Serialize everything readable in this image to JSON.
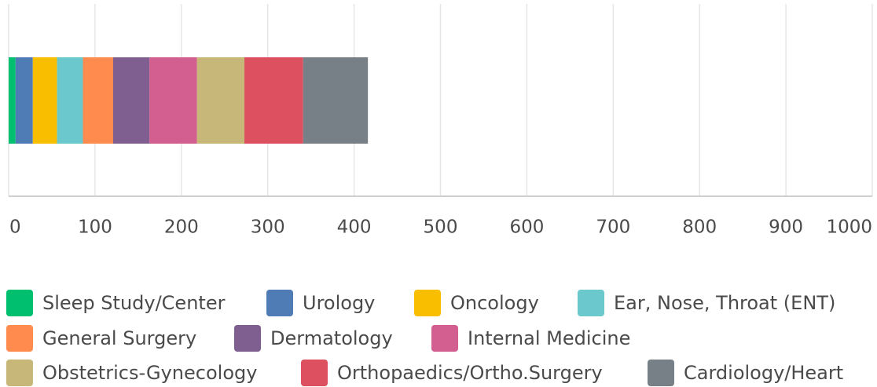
{
  "chart_data": {
    "type": "stacked_bar_horizontal",
    "series": [
      {
        "name": "Sleep Study/Center",
        "color": "#00bf6f",
        "values": [
          8
        ]
      },
      {
        "name": "Urology",
        "color": "#507cb6",
        "values": [
          20
        ]
      },
      {
        "name": "Oncology",
        "color": "#f9be00",
        "values": [
          28
        ]
      },
      {
        "name": "Ear, Nose, Throat (ENT)",
        "color": "#6bc8cd",
        "values": [
          30
        ]
      },
      {
        "name": "General Surgery",
        "color": "#ff8b4f",
        "values": [
          35
        ]
      },
      {
        "name": "Dermatology",
        "color": "#7f5f90",
        "values": [
          42
        ]
      },
      {
        "name": "Internal Medicine",
        "color": "#d25f90",
        "values": [
          55
        ]
      },
      {
        "name": "Obstetrics-Gynecology",
        "color": "#c7b879",
        "values": [
          55
        ]
      },
      {
        "name": "Orthopaedics/Ortho.Surgery",
        "color": "#dc5060",
        "values": [
          68
        ]
      },
      {
        "name": "Cardiology/Heart",
        "color": "#768086",
        "values": [
          75
        ]
      }
    ],
    "xlim": [
      0,
      1000
    ],
    "xticks": [
      0,
      100,
      200,
      300,
      400,
      500,
      600,
      700,
      800,
      900,
      1000
    ],
    "grid": true,
    "legend": "bottom"
  }
}
